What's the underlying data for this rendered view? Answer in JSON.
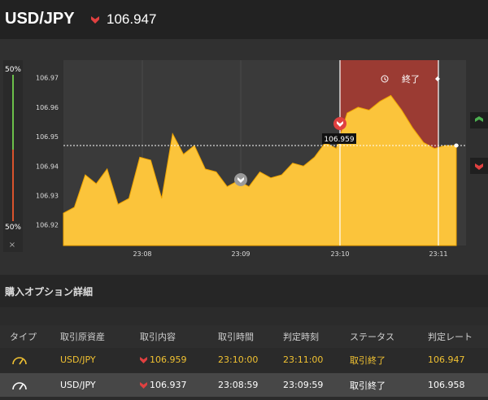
{
  "header": {
    "pair": "USD/JPY",
    "rate": "106.947",
    "direction_icon": "down-arrow-icon",
    "down_color": "#e04040",
    "up_color": "#4caf50"
  },
  "chart": {
    "percent_top": "50%",
    "percent_bottom": "50%",
    "close_label": "×",
    "current_price_label": "106.959",
    "end_label": "終了",
    "history_icon": "history-icon",
    "y_ticks": [
      "106.97",
      "106.96",
      "106.95",
      "106.94",
      "106.93",
      "106.92"
    ],
    "x_ticks": [
      "23:08",
      "23:09",
      "23:10",
      "23:11"
    ],
    "area_color": "#fbc43b",
    "highlight_color": "#9b3b33"
  },
  "section": {
    "title": "購入オプション詳細"
  },
  "table": {
    "headers": [
      "タイプ",
      "取引原資産",
      "取引内容",
      "取引時間",
      "判定時刻",
      "ステータス",
      "判定レート"
    ],
    "rows": [
      {
        "type_icon": "gauge-icon",
        "asset": "USD/JPY",
        "direction": "down",
        "rate": "106.959",
        "time": "23:10:00",
        "judge_time": "23:11:00",
        "status": "取引終了",
        "judge_rate": "106.947"
      },
      {
        "type_icon": "gauge-icon",
        "asset": "USD/JPY",
        "direction": "down",
        "rate": "106.937",
        "time": "23:08:59",
        "judge_time": "23:09:59",
        "status": "取引終了",
        "judge_rate": "106.958"
      }
    ]
  },
  "chart_data": {
    "type": "area",
    "title": "",
    "xlabel": "",
    "ylabel": "",
    "ylim": [
      106.913,
      106.976
    ],
    "x_ticks": [
      "23:08",
      "23:09",
      "23:10",
      "23:11"
    ],
    "x_range_seconds_from_2307_45": [
      0,
      205
    ],
    "series": [
      {
        "values": [
          106.924,
          106.926,
          106.937,
          106.934,
          106.939,
          106.927,
          106.929,
          106.943,
          106.942,
          106.929,
          106.951,
          106.944,
          106.947,
          106.939,
          106.938,
          106.933,
          106.935,
          106.933,
          106.938,
          106.936,
          106.937,
          106.941,
          106.94,
          106.943,
          106.948,
          106.946,
          106.958,
          106.96,
          106.959,
          106.962,
          106.964,
          106.959,
          106.953,
          106.948,
          106.946,
          106.947,
          106.947
        ]
      }
    ],
    "markers": [
      {
        "time": "23:09",
        "value": 106.933,
        "kind": "entry-neutral"
      },
      {
        "time": "23:10",
        "value": 106.955,
        "kind": "entry-down"
      }
    ],
    "current_rate": 106.947
  }
}
